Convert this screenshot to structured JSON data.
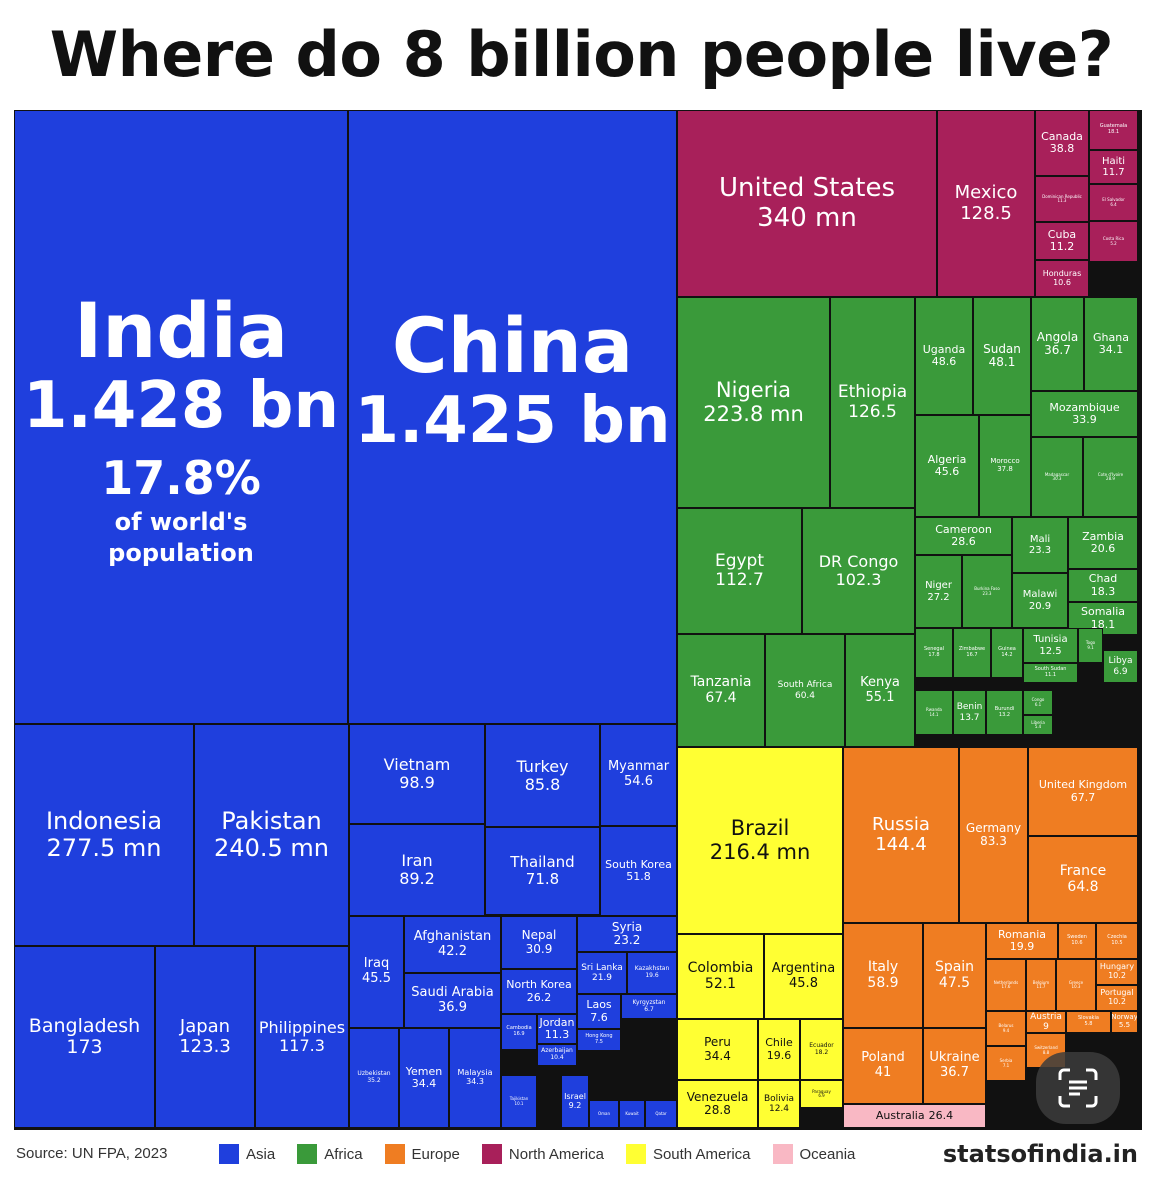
{
  "title": "Where do 8 billion people live?",
  "footer": {
    "source": "Source: UN FPA, 2023",
    "brand": "statsofindia.in"
  },
  "icons": {
    "scan_button": "text-scan-icon"
  },
  "chart_data": {
    "type": "treemap",
    "title": "Where do 8 billion people live?",
    "colors": {
      "Asia": "#1f3fdd",
      "Africa": "#3a9a3a",
      "Europe": "#ef7d22",
      "North America": "#a8205a",
      "South America": "#ffff33",
      "Oceania": "#f9b8c4"
    },
    "legend": [
      "Asia",
      "Africa",
      "Europe",
      "North America",
      "South America",
      "Oceania"
    ],
    "legend_position": "bottom",
    "highlight": {
      "country": "India",
      "share": "17.8%",
      "share_text": [
        "of world's",
        "population"
      ]
    },
    "cells": [
      {
        "country": "India",
        "region": "Asia",
        "value": "1.428 bn"
      },
      {
        "country": "China",
        "region": "Asia",
        "value": "1.425 bn"
      },
      {
        "country": "Indonesia",
        "region": "Asia",
        "value": "277.5 mn"
      },
      {
        "country": "Pakistan",
        "region": "Asia",
        "value": "240.5 mn"
      },
      {
        "country": "Bangladesh",
        "region": "Asia",
        "value": "173"
      },
      {
        "country": "Japan",
        "region": "Asia",
        "value": "123.3"
      },
      {
        "country": "Philippines",
        "region": "Asia",
        "value": "117.3"
      },
      {
        "country": "Vietnam",
        "region": "Asia",
        "value": "98.9"
      },
      {
        "country": "Turkey",
        "region": "Asia",
        "value": "85.8"
      },
      {
        "country": "Myanmar",
        "region": "Asia",
        "value": "54.6"
      },
      {
        "country": "Iran",
        "region": "Asia",
        "value": "89.2"
      },
      {
        "country": "Thailand",
        "region": "Asia",
        "value": "71.8"
      },
      {
        "country": "South Korea",
        "region": "Asia",
        "value": "51.8"
      },
      {
        "country": "Iraq",
        "region": "Asia",
        "value": "45.5"
      },
      {
        "country": "Afghanistan",
        "region": "Asia",
        "value": "42.2"
      },
      {
        "country": "Nepal",
        "region": "Asia",
        "value": "30.9"
      },
      {
        "country": "Syria",
        "region": "Asia",
        "value": "23.2"
      },
      {
        "country": "Saudi Arabia",
        "region": "Asia",
        "value": "36.9"
      },
      {
        "country": "North Korea",
        "region": "Asia",
        "value": "26.2"
      },
      {
        "country": "Sri Lanka",
        "region": "Asia",
        "value": "21.9"
      },
      {
        "country": "Kazakhstan",
        "region": "Asia",
        "value": "19.6"
      },
      {
        "country": "Jordan",
        "region": "Asia",
        "value": "11.3"
      },
      {
        "country": "Laos",
        "region": "Asia",
        "value": "7.6"
      },
      {
        "country": "Kyrgyzstan",
        "region": "Asia",
        "value": "6.7"
      },
      {
        "country": "Cambodia",
        "region": "Asia",
        "value": "16.9"
      },
      {
        "country": "Azerbaijan",
        "region": "Asia",
        "value": "10.4"
      },
      {
        "country": "Hong Kong",
        "region": "Asia",
        "value": "7.5"
      },
      {
        "country": "Uzbekistan",
        "region": "Asia",
        "value": "35.2"
      },
      {
        "country": "Yemen",
        "region": "Asia",
        "value": "34.4"
      },
      {
        "country": "Malaysia",
        "region": "Asia",
        "value": "34.3"
      },
      {
        "country": "Tajikistan",
        "region": "Asia",
        "value": "10.1"
      },
      {
        "country": "Israel",
        "region": "Asia",
        "value": "9.2"
      },
      {
        "country": "Oman",
        "region": "Asia",
        "value": ""
      },
      {
        "country": "Kuwait",
        "region": "Asia",
        "value": ""
      },
      {
        "country": "Qatar",
        "region": "Asia",
        "value": ""
      },
      {
        "country": "United States",
        "region": "North America",
        "value": "340 mn"
      },
      {
        "country": "Mexico",
        "region": "North America",
        "value": "128.5"
      },
      {
        "country": "Canada",
        "region": "North America",
        "value": "38.8"
      },
      {
        "country": "Guatemala",
        "region": "North America",
        "value": "18.1"
      },
      {
        "country": "Haiti",
        "region": "North America",
        "value": "11.7"
      },
      {
        "country": "Dominican Republic",
        "region": "North America",
        "value": "11.3"
      },
      {
        "country": "El Salvador",
        "region": "North America",
        "value": "6.4"
      },
      {
        "country": "Cuba",
        "region": "North America",
        "value": "11.2"
      },
      {
        "country": "Costa Rica",
        "region": "North America",
        "value": "5.2"
      },
      {
        "country": "Honduras",
        "region": "North America",
        "value": "10.6"
      },
      {
        "country": "Nigeria",
        "region": "Africa",
        "value": "223.8 mn"
      },
      {
        "country": "Ethiopia",
        "region": "Africa",
        "value": "126.5"
      },
      {
        "country": "Uganda",
        "region": "Africa",
        "value": "48.6"
      },
      {
        "country": "Sudan",
        "region": "Africa",
        "value": "48.1"
      },
      {
        "country": "Angola",
        "region": "Africa",
        "value": "36.7"
      },
      {
        "country": "Ghana",
        "region": "Africa",
        "value": "34.1"
      },
      {
        "country": "Mozambique",
        "region": "Africa",
        "value": "33.9"
      },
      {
        "country": "Algeria",
        "region": "Africa",
        "value": "45.6"
      },
      {
        "country": "Morocco",
        "region": "Africa",
        "value": "37.8"
      },
      {
        "country": "Madagascar",
        "region": "Africa",
        "value": "30.3"
      },
      {
        "country": "Cote d'Ivoire",
        "region": "Africa",
        "value": "28.9"
      },
      {
        "country": "Egypt",
        "region": "Africa",
        "value": "112.7"
      },
      {
        "country": "DR Congo",
        "region": "Africa",
        "value": "102.3"
      },
      {
        "country": "Cameroon",
        "region": "Africa",
        "value": "28.6"
      },
      {
        "country": "Mali",
        "region": "Africa",
        "value": "23.3"
      },
      {
        "country": "Zambia",
        "region": "Africa",
        "value": "20.6"
      },
      {
        "country": "Niger",
        "region": "Africa",
        "value": "27.2"
      },
      {
        "country": "Burkina Faso",
        "region": "Africa",
        "value": "23.3"
      },
      {
        "country": "Malawi",
        "region": "Africa",
        "value": "20.9"
      },
      {
        "country": "Chad",
        "region": "Africa",
        "value": "18.3"
      },
      {
        "country": "Somalia",
        "region": "Africa",
        "value": "18.1"
      },
      {
        "country": "Tanzania",
        "region": "Africa",
        "value": "67.4"
      },
      {
        "country": "South Africa",
        "region": "Africa",
        "value": "60.4"
      },
      {
        "country": "Kenya",
        "region": "Africa",
        "value": "55.1"
      },
      {
        "country": "Senegal",
        "region": "Africa",
        "value": "17.8"
      },
      {
        "country": "Zimbabwe",
        "region": "Africa",
        "value": "16.7"
      },
      {
        "country": "Guinea",
        "region": "Africa",
        "value": "14.2"
      },
      {
        "country": "Tunisia",
        "region": "Africa",
        "value": "12.5"
      },
      {
        "country": "Togo",
        "region": "Africa",
        "value": "9.1"
      },
      {
        "country": "South Sudan",
        "region": "Africa",
        "value": "11.1"
      },
      {
        "country": "Libya",
        "region": "Africa",
        "value": "6.9"
      },
      {
        "country": "Rwanda",
        "region": "Africa",
        "value": "14.1"
      },
      {
        "country": "Benin",
        "region": "Africa",
        "value": "13.7"
      },
      {
        "country": "Burundi",
        "region": "Africa",
        "value": "13.2"
      },
      {
        "country": "Congo",
        "region": "Africa",
        "value": "6.1"
      },
      {
        "country": "Liberia",
        "region": "Africa",
        "value": "5.4"
      },
      {
        "country": "Brazil",
        "region": "South America",
        "value": "216.4 mn"
      },
      {
        "country": "Colombia",
        "region": "South America",
        "value": "52.1"
      },
      {
        "country": "Argentina",
        "region": "South America",
        "value": "45.8"
      },
      {
        "country": "Peru",
        "region": "South America",
        "value": "34.4"
      },
      {
        "country": "Chile",
        "region": "South America",
        "value": "19.6"
      },
      {
        "country": "Ecuador",
        "region": "South America",
        "value": "18.2"
      },
      {
        "country": "Venezuela",
        "region": "South America",
        "value": "28.8"
      },
      {
        "country": "Bolivia",
        "region": "South America",
        "value": "12.4"
      },
      {
        "country": "Paraguay",
        "region": "South America",
        "value": "6.9"
      },
      {
        "country": "Russia",
        "region": "Europe",
        "value": "144.4"
      },
      {
        "country": "Germany",
        "region": "Europe",
        "value": "83.3"
      },
      {
        "country": "United Kingdom",
        "region": "Europe",
        "value": "67.7"
      },
      {
        "country": "France",
        "region": "Europe",
        "value": "64.8"
      },
      {
        "country": "Italy",
        "region": "Europe",
        "value": "58.9"
      },
      {
        "country": "Spain",
        "region": "Europe",
        "value": "47.5"
      },
      {
        "country": "Romania",
        "region": "Europe",
        "value": "19.9"
      },
      {
        "country": "Sweden",
        "region": "Europe",
        "value": "10.6"
      },
      {
        "country": "Czechia",
        "region": "Europe",
        "value": "10.5"
      },
      {
        "country": "Hungary",
        "region": "Europe",
        "value": "10.2"
      },
      {
        "country": "Portugal",
        "region": "Europe",
        "value": "10.2"
      },
      {
        "country": "Netherlands",
        "region": "Europe",
        "value": "17.6"
      },
      {
        "country": "Belgium",
        "region": "Europe",
        "value": "11.7"
      },
      {
        "country": "Greece",
        "region": "Europe",
        "value": "10.3"
      },
      {
        "country": "Austria",
        "region": "Europe",
        "value": "9"
      },
      {
        "country": "Norway",
        "region": "Europe",
        "value": "5.5"
      },
      {
        "country": "Slovakia",
        "region": "Europe",
        "value": "5.8"
      },
      {
        "country": "Belarus",
        "region": "Europe",
        "value": "9.4"
      },
      {
        "country": "Switzerland",
        "region": "Europe",
        "value": "8.8"
      },
      {
        "country": "Serbia",
        "region": "Europe",
        "value": "7.1"
      },
      {
        "country": "Poland",
        "region": "Europe",
        "value": "41"
      },
      {
        "country": "Ukraine",
        "region": "Europe",
        "value": "36.7"
      },
      {
        "country": "Australia",
        "region": "Oceania",
        "value": "26.4"
      }
    ]
  }
}
